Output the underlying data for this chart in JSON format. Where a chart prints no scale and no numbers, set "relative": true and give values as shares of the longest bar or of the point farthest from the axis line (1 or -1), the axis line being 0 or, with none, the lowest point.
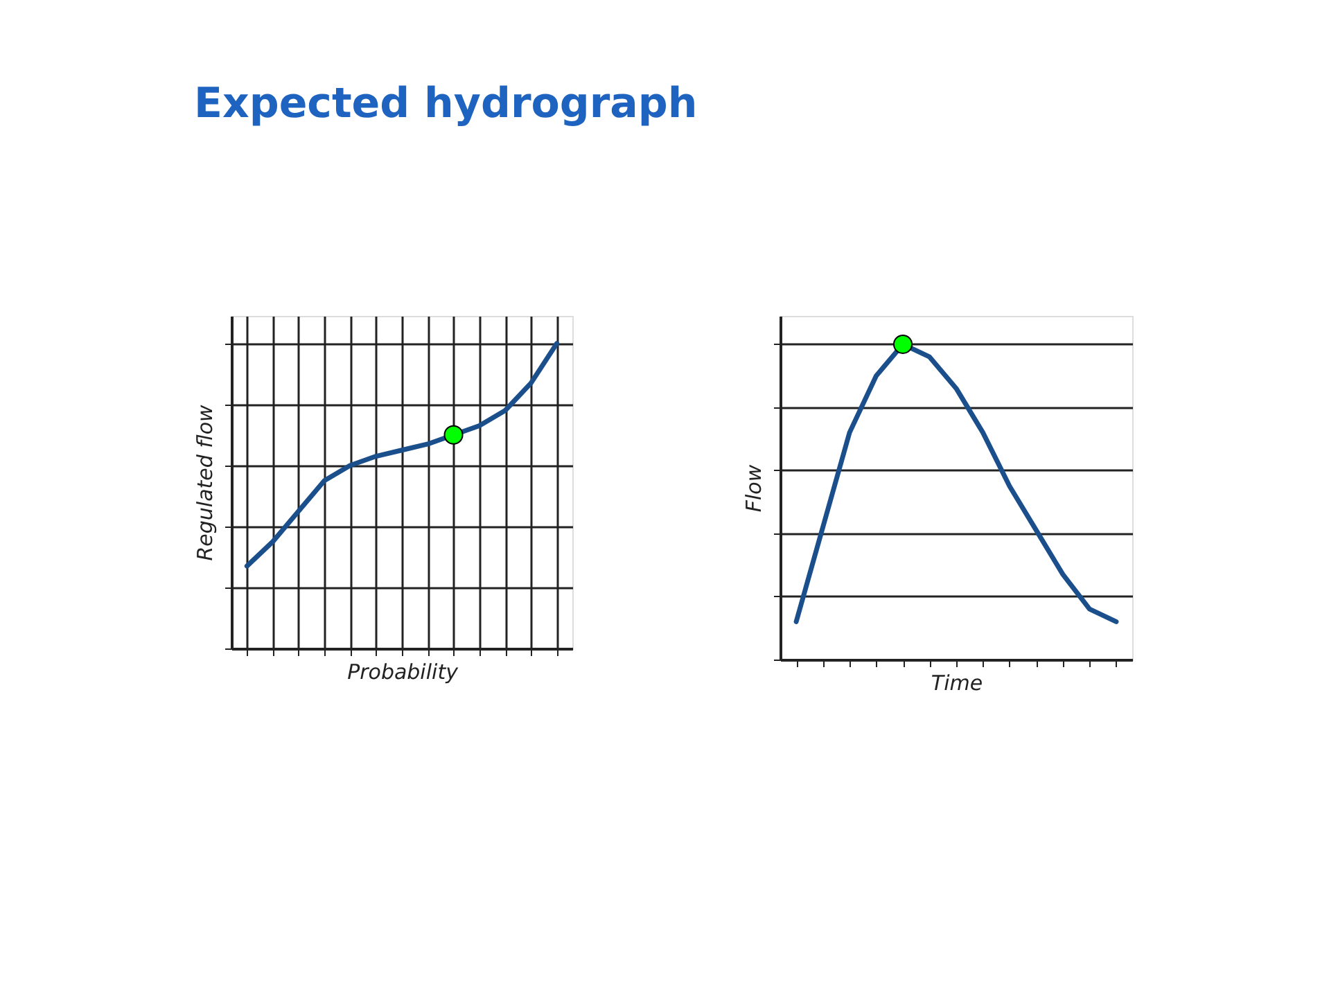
{
  "chart_data": [
    {
      "type": "line",
      "title": "Expected hydrograph",
      "xlabel": "Probability",
      "ylabel": "Regulated flow",
      "relative": true,
      "grid": true,
      "tick_labels": false,
      "categories": [
        null,
        null,
        null,
        null,
        null,
        null,
        null,
        null,
        null,
        null,
        null,
        null,
        null
      ],
      "series": [
        {
          "type": "line",
          "color": "#1b4f8c",
          "marker": "none",
          "line_style": "solid",
          "values": [
            0.27,
            0.35,
            0.45,
            0.55,
            0.6,
            0.63,
            0.65,
            0.67,
            0.7,
            0.73,
            0.78,
            0.87,
            1.0
          ]
        },
        {
          "type": "line",
          "color": "#00ff00",
          "marker": "circle",
          "values": [
            null,
            null,
            null,
            null,
            null,
            null,
            null,
            null,
            0.7,
            null,
            null,
            null,
            null
          ]
        }
      ]
    },
    {
      "type": "line",
      "xlabel": "Time",
      "ylabel": "Flow",
      "relative": true,
      "grid": "y",
      "tick_labels": false,
      "categories": [
        null,
        null,
        null,
        null,
        null,
        null,
        null,
        null,
        null,
        null,
        null,
        null,
        null
      ],
      "series": [
        {
          "type": "line",
          "color": "#1b4f8c",
          "marker": "none",
          "line_style": "solid",
          "values": [
            0.12,
            0.42,
            0.72,
            0.9,
            1.0,
            0.96,
            0.86,
            0.72,
            0.55,
            0.41,
            0.27,
            0.16,
            0.12
          ]
        },
        {
          "type": "line",
          "color": "#00ff00",
          "marker": "circle",
          "values": [
            null,
            null,
            null,
            null,
            1.0,
            null,
            null,
            null,
            null,
            null,
            null,
            null,
            null
          ]
        }
      ]
    }
  ]
}
